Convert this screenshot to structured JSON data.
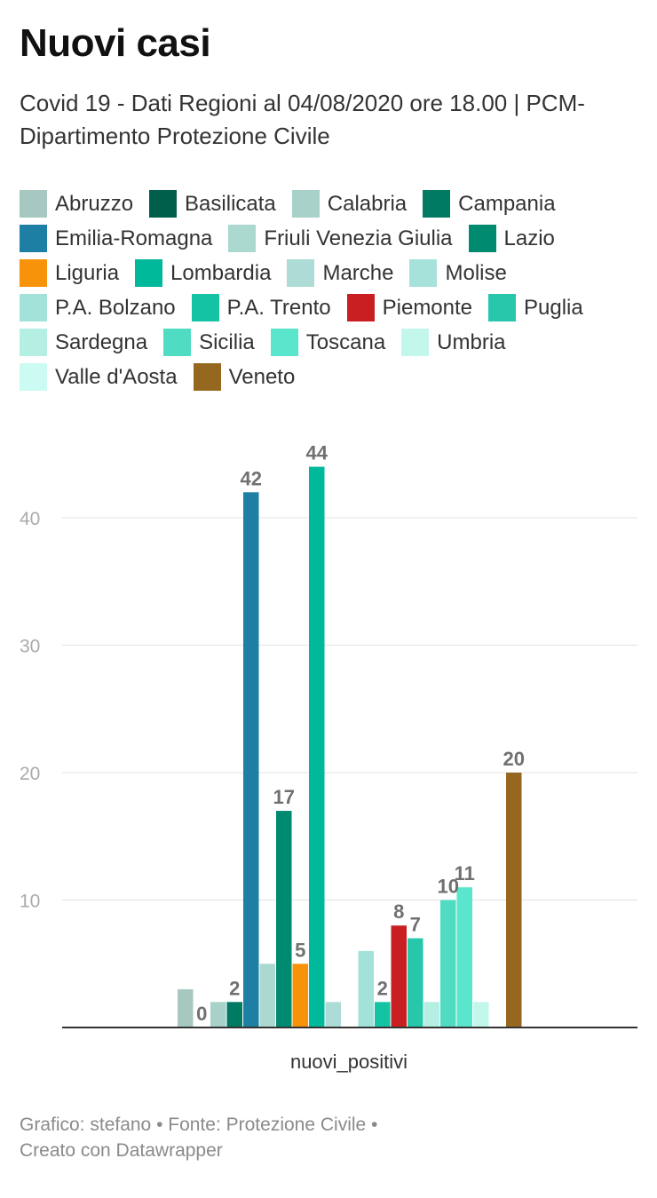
{
  "title": "Nuovi casi",
  "subtitle": "Covid 19 - Dati Regioni al 04/08/2020 ore 18.00 | PCM- Dipartimento Protezione Civile",
  "footer": {
    "line1": "Grafico: stefano • Fonte: Protezione Civile •",
    "line2": "Creato con Datawrapper"
  },
  "chart_data": {
    "type": "bar",
    "title": "Nuovi casi",
    "categories": [
      "nuovi_positivi"
    ],
    "xlabel": "",
    "ylabel": "",
    "ylim": [
      0,
      44
    ],
    "yticks": [
      10,
      20,
      30,
      40
    ],
    "grid": true,
    "legend": "top",
    "series": [
      {
        "name": "Abruzzo",
        "color": "#a7c8c0",
        "values": [
          3
        ],
        "label": ""
      },
      {
        "name": "Basilicata",
        "color": "#005f4b",
        "values": [
          0
        ],
        "label": "0"
      },
      {
        "name": "Calabria",
        "color": "#a8d1c9",
        "values": [
          2
        ],
        "label": ""
      },
      {
        "name": "Campania",
        "color": "#007a63",
        "values": [
          2
        ],
        "label": "2"
      },
      {
        "name": "Emilia-Romagna",
        "color": "#1c7fa3",
        "values": [
          42
        ],
        "label": "42"
      },
      {
        "name": "Friuli Venezia Giulia",
        "color": "#acd9cf",
        "values": [
          5
        ],
        "label": ""
      },
      {
        "name": "Lazio",
        "color": "#008a70",
        "values": [
          17
        ],
        "label": "17"
      },
      {
        "name": "Liguria",
        "color": "#f7930a",
        "values": [
          5
        ],
        "label": "5"
      },
      {
        "name": "Lombardia",
        "color": "#00b89a",
        "values": [
          44
        ],
        "label": "44"
      },
      {
        "name": "Marche",
        "color": "#acdcd5",
        "values": [
          2
        ],
        "label": ""
      },
      {
        "name": "Molise",
        "color": "#a6e2da",
        "values": [
          0
        ],
        "label": ""
      },
      {
        "name": "P.A. Bolzano",
        "color": "#a2e2d9",
        "values": [
          6
        ],
        "label": ""
      },
      {
        "name": "P.A. Trento",
        "color": "#14c2a4",
        "values": [
          2
        ],
        "label": "2"
      },
      {
        "name": "Piemonte",
        "color": "#c91f23",
        "values": [
          8
        ],
        "label": "8"
      },
      {
        "name": "Puglia",
        "color": "#26c7aa",
        "values": [
          7
        ],
        "label": "7"
      },
      {
        "name": "Sardegna",
        "color": "#b5eee3",
        "values": [
          2
        ],
        "label": ""
      },
      {
        "name": "Sicilia",
        "color": "#4fdcc2",
        "values": [
          10
        ],
        "label": "10"
      },
      {
        "name": "Toscana",
        "color": "#5ae6cc",
        "values": [
          11
        ],
        "label": "11"
      },
      {
        "name": "Umbria",
        "color": "#c4f7ec",
        "values": [
          2
        ],
        "label": ""
      },
      {
        "name": "Valle d'Aosta",
        "color": "#cbfbf2",
        "values": [
          0
        ],
        "label": ""
      },
      {
        "name": "Veneto",
        "color": "#96671f",
        "values": [
          20
        ],
        "label": "20"
      }
    ]
  }
}
